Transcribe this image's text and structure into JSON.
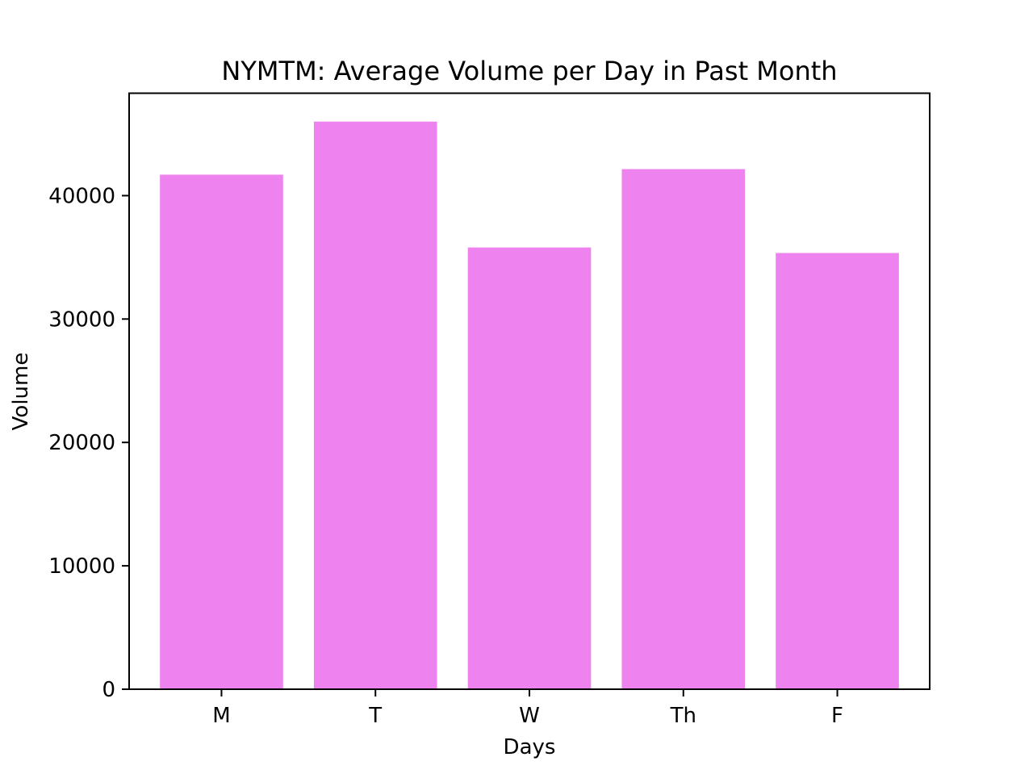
{
  "chart_data": {
    "type": "bar",
    "title": "NYMTM: Average Volume per Day in Past Month",
    "xlabel": "Days",
    "ylabel": "Volume",
    "categories": [
      "M",
      "T",
      "W",
      "Th",
      "F"
    ],
    "values": [
      41700,
      46000,
      35800,
      42150,
      35350
    ],
    "ylim": [
      0,
      48300
    ],
    "yticks": [
      0,
      10000,
      20000,
      30000,
      40000
    ],
    "bar_color": "#ee82ee",
    "grid": false
  }
}
